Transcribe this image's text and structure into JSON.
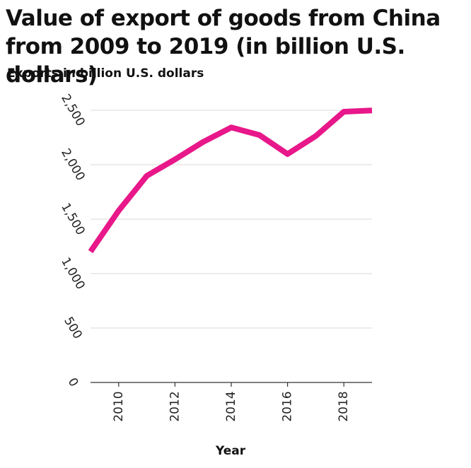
{
  "chart_data": {
    "type": "line",
    "title": "Value of export of goods from China from 2009 to 2019 (in billion U.S. dollars)",
    "xlabel": "Year",
    "ylabel": "Exports in billion U.S. dollars",
    "x": [
      2009,
      2010,
      2011,
      2012,
      2013,
      2014,
      2015,
      2016,
      2017,
      2018,
      2019
    ],
    "series": [
      {
        "values": [
          1202,
          1578,
          1898,
          2049,
          2209,
          2342,
          2273,
          2098,
          2263,
          2487,
          2499
        ]
      }
    ],
    "xlim": [
      2009,
      2019
    ],
    "ylim": [
      0,
      2500
    ],
    "xticks": [
      2010,
      2012,
      2014,
      2016,
      2018
    ],
    "yticks": [
      0,
      500,
      1000,
      1500,
      2000,
      2500
    ],
    "ytick_labels": [
      "0",
      "500",
      "1,000",
      "1,500",
      "2,000",
      "2,500"
    ],
    "grid": "horizontal",
    "line_color": "#e8178a",
    "legend": "none"
  }
}
